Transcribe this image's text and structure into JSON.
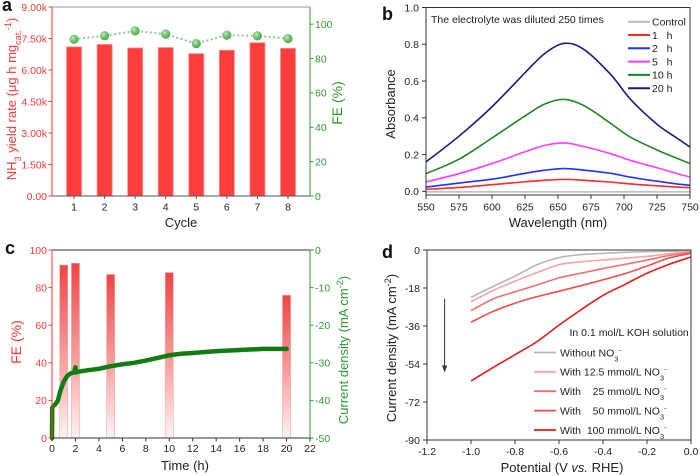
{
  "chart_data": [
    {
      "panel_label": "a",
      "type": "bar",
      "categories": [
        "1",
        "2",
        "3",
        "4",
        "5",
        "6",
        "7",
        "8"
      ],
      "xlabel": "Cycle",
      "xlim": [
        0.28,
        8.72
      ],
      "y_left": {
        "label_parts": [
          {
            "t": "NH"
          },
          {
            "t": "3",
            "s": "sub"
          },
          {
            "t": " yield rate (μg h mg"
          },
          {
            "t": "cat.",
            "s": "sub"
          },
          {
            "t": "-1",
            "s": "sup"
          },
          {
            "t": ")"
          }
        ],
        "lim": [
          0,
          9000
        ],
        "ticks": [
          0,
          1500,
          3000,
          4500,
          6000,
          7500,
          9000
        ],
        "tick_labels": [
          "0.00",
          "1.50k",
          "3.00k",
          "4.50k",
          "6.00k",
          "7.50k",
          "9.00k"
        ],
        "color": "#f23b3b"
      },
      "y_right": {
        "label_parts": [
          {
            "t": "FE (%)"
          }
        ],
        "lim": [
          0,
          110
        ],
        "ticks": [
          0,
          20,
          40,
          60,
          80,
          100
        ],
        "tick_labels": [
          "0",
          "20",
          "40",
          "60",
          "80",
          "100"
        ],
        "color": "#2f9a2f"
      },
      "series": [
        {
          "name": "NH3 yield rate",
          "kind": "bar",
          "axis": "left",
          "values": [
            7100,
            7220,
            7050,
            7070,
            6780,
            6940,
            7300,
            7030
          ],
          "color": "#ff3d3d"
        },
        {
          "name": "FE",
          "kind": "dotted-line-with-markers",
          "axis": "right",
          "values": [
            91.2,
            93.3,
            96.1,
            94.2,
            88.7,
            93.6,
            93.2,
            91.6
          ],
          "color": "#6cbf6c"
        }
      ],
      "grid": false,
      "legend": "none"
    },
    {
      "panel_label": "b",
      "type": "line",
      "annotation": "The electrolyte was diluted 250 times",
      "xlabel": "Wavelength (nm)",
      "ylabel": "Absorbance",
      "xlim": [
        550,
        750
      ],
      "ylim": [
        -0.02,
        1.0
      ],
      "xticks": [
        550,
        575,
        600,
        625,
        650,
        675,
        700,
        725,
        750
      ],
      "xtick_labels": [
        "550",
        "575",
        "600",
        "625",
        "650",
        "675",
        "700",
        "725",
        "750"
      ],
      "yticks": [
        0,
        0.2,
        0.4,
        0.6,
        0.8,
        1.0
      ],
      "ytick_labels": [
        "0.0",
        "0.2",
        "0.4",
        "0.6",
        "0.8",
        "1.0"
      ],
      "x": [
        550,
        575,
        600,
        625,
        640,
        655,
        670,
        690,
        705,
        725,
        740,
        750
      ],
      "series": [
        {
          "name": "Control",
          "legend": "Control",
          "color": "#b9b9b9",
          "values": [
            -0.003,
            -0.003,
            -0.003,
            -0.003,
            -0.003,
            -0.003,
            -0.003,
            -0.003,
            -0.003,
            -0.003,
            -0.003,
            -0.003
          ]
        },
        {
          "name": "1 h",
          "legend": "1   h",
          "color": "#ff2a2a",
          "values": [
            0.011,
            0.021,
            0.036,
            0.052,
            0.06,
            0.065,
            0.06,
            0.05,
            0.04,
            0.03,
            0.023,
            0.02
          ]
        },
        {
          "name": "2 h",
          "legend": "2   h",
          "color": "#1f33ff",
          "values": [
            0.023,
            0.045,
            0.066,
            0.098,
            0.115,
            0.124,
            0.115,
            0.098,
            0.077,
            0.055,
            0.04,
            0.033
          ]
        },
        {
          "name": "5 h",
          "legend": "5   h",
          "color": "#ff3cff",
          "values": [
            0.051,
            0.096,
            0.151,
            0.215,
            0.25,
            0.263,
            0.243,
            0.204,
            0.168,
            0.128,
            0.097,
            0.078
          ]
        },
        {
          "name": "10 h",
          "legend": "10 h",
          "color": "#1e861e",
          "values": [
            0.096,
            0.175,
            0.29,
            0.41,
            0.475,
            0.5,
            0.465,
            0.369,
            0.294,
            0.225,
            0.18,
            0.151
          ]
        },
        {
          "name": "20 h",
          "legend": "20 h",
          "color": "#1b1b7e",
          "values": [
            0.16,
            0.3,
            0.46,
            0.645,
            0.75,
            0.805,
            0.77,
            0.635,
            0.5,
            0.365,
            0.29,
            0.241
          ]
        }
      ],
      "legend_position": "top-right",
      "grid": false
    },
    {
      "panel_label": "c",
      "type": "bar+line",
      "xlabel": "Time (h)",
      "xlim": [
        0,
        22
      ],
      "xticks": [
        0,
        2,
        4,
        6,
        8,
        10,
        12,
        14,
        16,
        18,
        20,
        22
      ],
      "xtick_labels": [
        "0",
        "2",
        "4",
        "6",
        "8",
        "10",
        "12",
        "14",
        "16",
        "18",
        "20",
        "22"
      ],
      "y_left": {
        "label_parts": [
          {
            "t": "FE (%)"
          }
        ],
        "lim": [
          0,
          100
        ],
        "ticks": [
          0,
          20,
          40,
          60,
          80,
          100
        ],
        "tick_labels": [
          "0",
          "20",
          "40",
          "60",
          "80",
          "100"
        ],
        "color": "#f23b3b"
      },
      "y_right": {
        "label_parts": [
          {
            "t": "Current density (mA cm"
          },
          {
            "t": "-2",
            "s": "sup"
          },
          {
            "t": ")"
          }
        ],
        "lim": [
          -50,
          0
        ],
        "ticks": [
          0,
          -10,
          -20,
          -30,
          -40,
          -50
        ],
        "tick_labels": [
          "0",
          "-10",
          "-20",
          "-30",
          "-40",
          "-50"
        ],
        "color": "#2f9a2f"
      },
      "bars": {
        "name": "FE",
        "axis": "left",
        "x": [
          1,
          2,
          5,
          10,
          20
        ],
        "values": [
          92,
          93,
          87,
          88,
          76
        ],
        "color": "#f24545"
      },
      "line": {
        "name": "Current density",
        "axis": "right",
        "x": [
          0,
          0.02,
          0.1,
          0.3,
          0.5,
          0.7,
          1.0,
          1.3,
          1.6,
          1.9,
          2.0,
          2.05,
          2.2,
          3,
          4,
          5,
          6,
          7,
          8,
          9,
          10,
          11,
          12,
          14,
          16,
          18,
          20
        ],
        "values": [
          -50,
          -42,
          -41.5,
          -41,
          -40,
          -37.6,
          -35,
          -33.5,
          -32.8,
          -32.5,
          -31.2,
          -32.6,
          -32.4,
          -32,
          -31.6,
          -30.9,
          -30.4,
          -30,
          -29.4,
          -28.7,
          -28,
          -27.6,
          -27.4,
          -26.9,
          -26.6,
          -26.3,
          -26.3
        ],
        "color": "#127c12"
      },
      "grid": false,
      "legend": "none"
    },
    {
      "panel_label": "d",
      "type": "line",
      "xlabel_parts": [
        {
          "t": "Potential (V "
        },
        {
          "t": "vs.",
          "s": "italic"
        },
        {
          "t": " RHE)"
        }
      ],
      "ylabel_parts": [
        {
          "t": "Current density (mA cm"
        },
        {
          "t": "-2",
          "s": "sup"
        },
        {
          "t": ")"
        }
      ],
      "xlim": [
        -1.2,
        0.0
      ],
      "ylim": [
        -90,
        0
      ],
      "xticks": [
        -1.2,
        -1.0,
        -0.8,
        -0.6,
        -0.4,
        -0.2,
        0.0
      ],
      "xtick_labels": [
        "-1.2",
        "-1.0",
        "-0.8",
        "-0.6",
        "-0.4",
        "-0.2",
        "0.0"
      ],
      "yticks": [
        0,
        -18,
        -36,
        -54,
        -72,
        -90
      ],
      "ytick_labels": [
        "0",
        "-18",
        "-36",
        "-54",
        "-72",
        "-90"
      ],
      "legend_title": "In 0.1 mol/L KOH solution",
      "x": [
        -1.0,
        -0.9,
        -0.8,
        -0.7,
        -0.6,
        -0.5,
        -0.4,
        -0.3,
        -0.2,
        -0.1,
        0.0
      ],
      "series": [
        {
          "name": "Without NO3-",
          "legend_parts": [
            {
              "t": "Without NO"
            },
            {
              "t": "3",
              "s": "sub"
            },
            {
              "t": "-",
              "s": "sup"
            }
          ],
          "color": "#b5b5b5",
          "values": [
            -22.4,
            -17.3,
            -12.4,
            -7.0,
            -3.6,
            -2.2,
            -1.6,
            -1.1,
            -0.8,
            -0.6,
            -0.3
          ]
        },
        {
          "name": "With 12.5 mmol/L NO3-",
          "legend_parts": [
            {
              "t": "With 12.5 mmol/L NO"
            },
            {
              "t": "3",
              "s": "sub"
            },
            {
              "t": "-",
              "s": "sup"
            }
          ],
          "color": "#f7a3a3",
          "values": [
            -24.5,
            -19.2,
            -14.8,
            -10.7,
            -7.0,
            -5.6,
            -4.7,
            -3.9,
            -3.0,
            -1.8,
            -0.6
          ]
        },
        {
          "name": "With 25 mmol/L NO3-",
          "legend_parts": [
            {
              "t": "With    25 mmol/L NO"
            },
            {
              "t": "3",
              "s": "sub"
            },
            {
              "t": "-",
              "s": "sup"
            }
          ],
          "color": "#f27070",
          "values": [
            -28.7,
            -23.2,
            -19.8,
            -16.6,
            -13.2,
            -11.0,
            -8.8,
            -6.8,
            -4.8,
            -2.6,
            -1.1
          ]
        },
        {
          "name": "With 50 mmol/L NO3-",
          "legend_parts": [
            {
              "t": "With    50 mmol/L NO"
            },
            {
              "t": "3",
              "s": "sub"
            },
            {
              "t": "-",
              "s": "sup"
            }
          ],
          "color": "#ef4d4d",
          "values": [
            -34.2,
            -29.1,
            -25.2,
            -22.1,
            -19.5,
            -16.9,
            -14.1,
            -11.2,
            -7.6,
            -3.8,
            -1.6
          ]
        },
        {
          "name": "With 100 mmol/L NO3-",
          "legend_parts": [
            {
              "t": "With  100 mmol/L NO"
            },
            {
              "t": "3",
              "s": "sub"
            },
            {
              "t": "-",
              "s": "sup"
            }
          ],
          "color": "#e41a1a",
          "values": [
            -62.0,
            -55.7,
            -49.6,
            -43.4,
            -35.6,
            -28.3,
            -21.5,
            -16.3,
            -11.0,
            -6.8,
            -3.3
          ]
        }
      ],
      "arrow": {
        "x": -1.12,
        "from_y": -23,
        "to_y": -58
      },
      "legend_position": "bottom-right",
      "grid": false
    }
  ]
}
